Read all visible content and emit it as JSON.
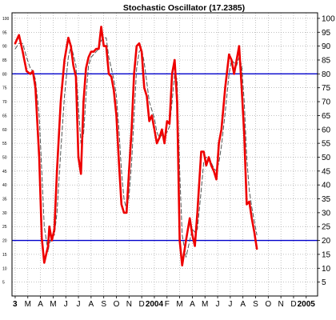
{
  "chart_data": {
    "type": "line",
    "title": "Stochastic Oscillator (17.2385)",
    "ylim": [
      0,
      102
    ],
    "y_ticks": [
      5,
      10,
      15,
      20,
      25,
      30,
      35,
      40,
      45,
      50,
      55,
      60,
      65,
      70,
      75,
      80,
      85,
      90,
      95,
      100
    ],
    "grid": true,
    "reference_lines": [
      {
        "value": 80,
        "color": "#0000cc"
      },
      {
        "value": 20,
        "color": "#0000cc"
      }
    ],
    "x_labels": [
      {
        "label": "3",
        "x": 0,
        "bold": true
      },
      {
        "label": "M",
        "x": 1
      },
      {
        "label": "A",
        "x": 2
      },
      {
        "label": "M",
        "x": 3
      },
      {
        "label": "J",
        "x": 4
      },
      {
        "label": "J",
        "x": 5
      },
      {
        "label": "A",
        "x": 6
      },
      {
        "label": "S",
        "x": 7
      },
      {
        "label": "O",
        "x": 8
      },
      {
        "label": "N",
        "x": 9
      },
      {
        "label": "D",
        "x": 10
      },
      {
        "label": "2004",
        "x": 11,
        "bold": true
      },
      {
        "label": "F",
        "x": 12
      },
      {
        "label": "M",
        "x": 13
      },
      {
        "label": "A",
        "x": 14
      },
      {
        "label": "M",
        "x": 15
      },
      {
        "label": "J",
        "x": 16
      },
      {
        "label": "J",
        "x": 17
      },
      {
        "label": "A",
        "x": 18
      },
      {
        "label": "S",
        "x": 19
      },
      {
        "label": "O",
        "x": 20
      },
      {
        "label": "N",
        "x": 21
      },
      {
        "label": "D",
        "x": 22
      },
      {
        "label": "2005",
        "x": 23,
        "bold": true
      }
    ],
    "series": [
      {
        "style": "solid",
        "color": "#ee0000",
        "points": [
          [
            0.0,
            91
          ],
          [
            0.3,
            94
          ],
          [
            0.6,
            88
          ],
          [
            0.9,
            81
          ],
          [
            1.2,
            80
          ],
          [
            1.4,
            81
          ],
          [
            1.6,
            75
          ],
          [
            1.9,
            50
          ],
          [
            2.1,
            21
          ],
          [
            2.3,
            12
          ],
          [
            2.6,
            18
          ],
          [
            2.7,
            25
          ],
          [
            2.9,
            20
          ],
          [
            3.1,
            24
          ],
          [
            3.3,
            45
          ],
          [
            3.6,
            70
          ],
          [
            3.9,
            85
          ],
          [
            4.2,
            93
          ],
          [
            4.4,
            90
          ],
          [
            4.6,
            83
          ],
          [
            4.8,
            79
          ],
          [
            5.0,
            50
          ],
          [
            5.2,
            44
          ],
          [
            5.4,
            70
          ],
          [
            5.6,
            82
          ],
          [
            5.8,
            86
          ],
          [
            6.0,
            88
          ],
          [
            6.2,
            88
          ],
          [
            6.4,
            89
          ],
          [
            6.6,
            89
          ],
          [
            6.8,
            97
          ],
          [
            7.0,
            90
          ],
          [
            7.2,
            90
          ],
          [
            7.4,
            80
          ],
          [
            7.6,
            79
          ],
          [
            7.8,
            74
          ],
          [
            8.0,
            65
          ],
          [
            8.2,
            48
          ],
          [
            8.4,
            33
          ],
          [
            8.6,
            30
          ],
          [
            8.8,
            30
          ],
          [
            9.0,
            45
          ],
          [
            9.2,
            60
          ],
          [
            9.4,
            80
          ],
          [
            9.6,
            90
          ],
          [
            9.8,
            91
          ],
          [
            10.0,
            88
          ],
          [
            10.2,
            75
          ],
          [
            10.4,
            72
          ],
          [
            10.6,
            63
          ],
          [
            10.8,
            65
          ],
          [
            11.0,
            60
          ],
          [
            11.2,
            55
          ],
          [
            11.4,
            57
          ],
          [
            11.6,
            60
          ],
          [
            11.8,
            55
          ],
          [
            12.0,
            63
          ],
          [
            12.2,
            62
          ],
          [
            12.4,
            80
          ],
          [
            12.6,
            85
          ],
          [
            12.8,
            70
          ],
          [
            13.0,
            20
          ],
          [
            13.2,
            11
          ],
          [
            13.5,
            20
          ],
          [
            13.8,
            28
          ],
          [
            14.0,
            22
          ],
          [
            14.2,
            18
          ],
          [
            14.4,
            30
          ],
          [
            14.7,
            52
          ],
          [
            14.9,
            52
          ],
          [
            15.1,
            47
          ],
          [
            15.3,
            50
          ],
          [
            15.5,
            47
          ],
          [
            15.7,
            45
          ],
          [
            15.9,
            42
          ],
          [
            16.1,
            55
          ],
          [
            16.3,
            60
          ],
          [
            16.6,
            75
          ],
          [
            16.9,
            87
          ],
          [
            17.1,
            85
          ],
          [
            17.3,
            80
          ],
          [
            17.5,
            85
          ],
          [
            17.7,
            90
          ],
          [
            17.9,
            75
          ],
          [
            18.1,
            58
          ],
          [
            18.3,
            33
          ],
          [
            18.5,
            34
          ],
          [
            18.7,
            28
          ],
          [
            18.9,
            23
          ],
          [
            19.1,
            17
          ]
        ]
      },
      {
        "style": "dashed",
        "color": "#555555",
        "points": [
          [
            0.0,
            89
          ],
          [
            0.3,
            91
          ],
          [
            0.6,
            91
          ],
          [
            0.9,
            86
          ],
          [
            1.2,
            82
          ],
          [
            1.4,
            81
          ],
          [
            1.6,
            78
          ],
          [
            1.9,
            65
          ],
          [
            2.1,
            45
          ],
          [
            2.3,
            25
          ],
          [
            2.6,
            16
          ],
          [
            2.7,
            19
          ],
          [
            2.9,
            21
          ],
          [
            3.1,
            22
          ],
          [
            3.3,
            30
          ],
          [
            3.6,
            52
          ],
          [
            3.9,
            72
          ],
          [
            4.2,
            86
          ],
          [
            4.4,
            90
          ],
          [
            4.6,
            87
          ],
          [
            4.8,
            83
          ],
          [
            5.0,
            68
          ],
          [
            5.2,
            55
          ],
          [
            5.4,
            58
          ],
          [
            5.6,
            72
          ],
          [
            5.8,
            83
          ],
          [
            6.0,
            86
          ],
          [
            6.2,
            87
          ],
          [
            6.4,
            88
          ],
          [
            6.6,
            89
          ],
          [
            6.8,
            92
          ],
          [
            7.0,
            93
          ],
          [
            7.2,
            93
          ],
          [
            7.4,
            86
          ],
          [
            7.6,
            82
          ],
          [
            7.8,
            78
          ],
          [
            8.0,
            72
          ],
          [
            8.2,
            60
          ],
          [
            8.4,
            45
          ],
          [
            8.6,
            35
          ],
          [
            8.8,
            31
          ],
          [
            9.0,
            36
          ],
          [
            9.2,
            48
          ],
          [
            9.4,
            65
          ],
          [
            9.6,
            82
          ],
          [
            9.8,
            88
          ],
          [
            10.0,
            89
          ],
          [
            10.2,
            84
          ],
          [
            10.4,
            77
          ],
          [
            10.6,
            70
          ],
          [
            10.8,
            67
          ],
          [
            11.0,
            64
          ],
          [
            11.2,
            59
          ],
          [
            11.4,
            57
          ],
          [
            11.6,
            58
          ],
          [
            11.8,
            58
          ],
          [
            12.0,
            59
          ],
          [
            12.2,
            61
          ],
          [
            12.4,
            70
          ],
          [
            12.6,
            80
          ],
          [
            12.8,
            78
          ],
          [
            13.0,
            45
          ],
          [
            13.2,
            22
          ],
          [
            13.5,
            14
          ],
          [
            13.8,
            20
          ],
          [
            14.0,
            24
          ],
          [
            14.2,
            23
          ],
          [
            14.4,
            24
          ],
          [
            14.7,
            38
          ],
          [
            14.9,
            48
          ],
          [
            15.1,
            50
          ],
          [
            15.3,
            50
          ],
          [
            15.5,
            48
          ],
          [
            15.7,
            46
          ],
          [
            15.9,
            45
          ],
          [
            16.1,
            48
          ],
          [
            16.3,
            54
          ],
          [
            16.6,
            66
          ],
          [
            16.9,
            80
          ],
          [
            17.1,
            85
          ],
          [
            17.3,
            84
          ],
          [
            17.5,
            83
          ],
          [
            17.7,
            86
          ],
          [
            17.9,
            83
          ],
          [
            18.1,
            70
          ],
          [
            18.3,
            50
          ],
          [
            18.5,
            38
          ],
          [
            18.7,
            32
          ],
          [
            18.9,
            27
          ],
          [
            19.1,
            22
          ]
        ]
      }
    ]
  }
}
